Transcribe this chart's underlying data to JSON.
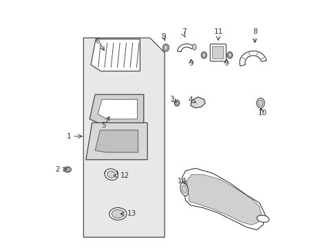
{
  "bg_color": "#ffffff",
  "line_color": "#333333",
  "fill_color": "#d8d8d8"
}
